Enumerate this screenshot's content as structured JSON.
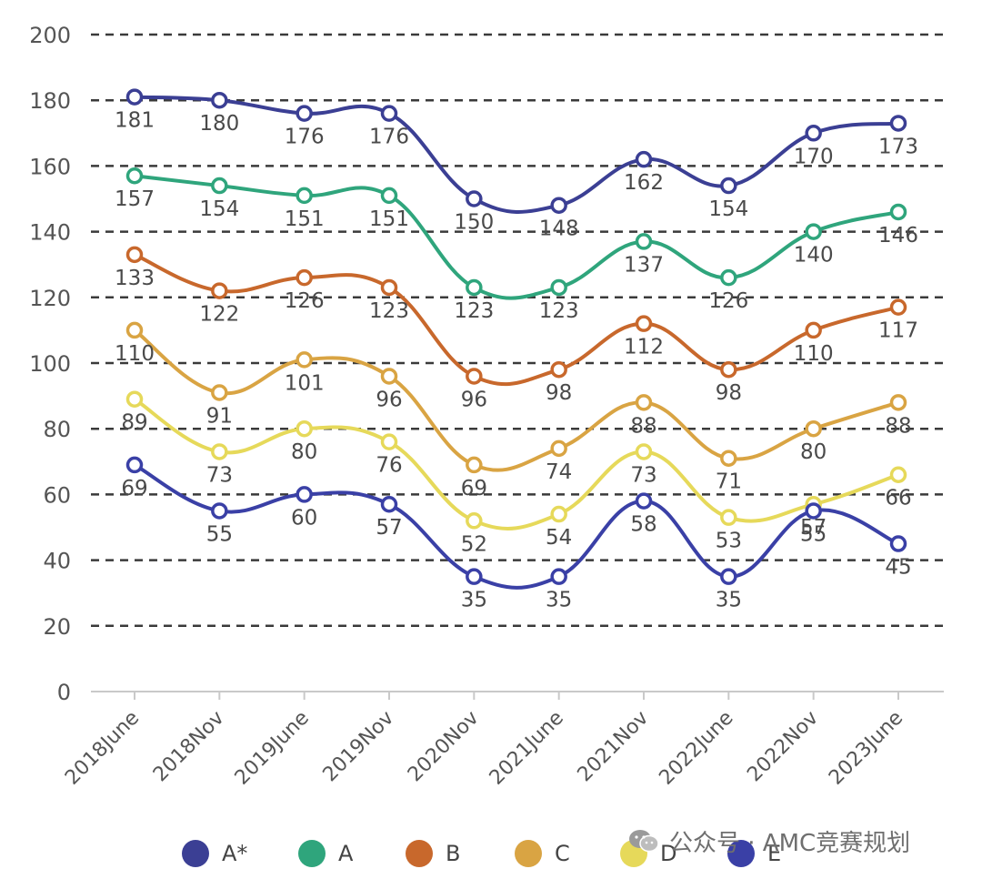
{
  "chart_data": {
    "type": "line",
    "categories": [
      "2018June",
      "2018Nov",
      "2019June",
      "2019Nov",
      "2020Nov",
      "2021June",
      "2021Nov",
      "2022June",
      "2022Nov",
      "2023June"
    ],
    "ylim": [
      0,
      200
    ],
    "yticks": [
      0,
      20,
      40,
      60,
      80,
      100,
      120,
      140,
      160,
      180,
      200
    ],
    "grid": true,
    "legend_position": "bottom",
    "series": [
      {
        "name": "A*",
        "color": "#3b3f94",
        "values": [
          181,
          180,
          176,
          176,
          150,
          148,
          162,
          154,
          170,
          173
        ]
      },
      {
        "name": "A",
        "color": "#2fa57c",
        "values": [
          157,
          154,
          151,
          151,
          123,
          123,
          137,
          126,
          140,
          146
        ]
      },
      {
        "name": "B",
        "color": "#c8682c",
        "values": [
          133,
          122,
          126,
          123,
          96,
          98,
          112,
          98,
          110,
          117
        ]
      },
      {
        "name": "C",
        "color": "#d9a443",
        "values": [
          110,
          91,
          101,
          96,
          69,
          74,
          88,
          71,
          80,
          88
        ]
      },
      {
        "name": "D",
        "color": "#e6d95a",
        "values": [
          89,
          73,
          80,
          76,
          52,
          54,
          73,
          53,
          57,
          66
        ]
      },
      {
        "name": "E",
        "color": "#3a40a6",
        "values": [
          69,
          55,
          60,
          57,
          35,
          35,
          58,
          35,
          55,
          45
        ]
      }
    ]
  },
  "legend": {
    "items": [
      {
        "label": "A*",
        "color": "#3b3f94"
      },
      {
        "label": "A",
        "color": "#2fa57c"
      },
      {
        "label": "B",
        "color": "#c8682c"
      },
      {
        "label": "C",
        "color": "#d9a443"
      },
      {
        "label": "D",
        "color": "#e6d95a"
      },
      {
        "label": "E",
        "color": "#3a40a6"
      }
    ]
  },
  "watermark": {
    "text": "公众号 · AMC竞赛规划",
    "icon": "wechat-icon"
  },
  "icons": {
    "wechat": "wechat-icon"
  }
}
